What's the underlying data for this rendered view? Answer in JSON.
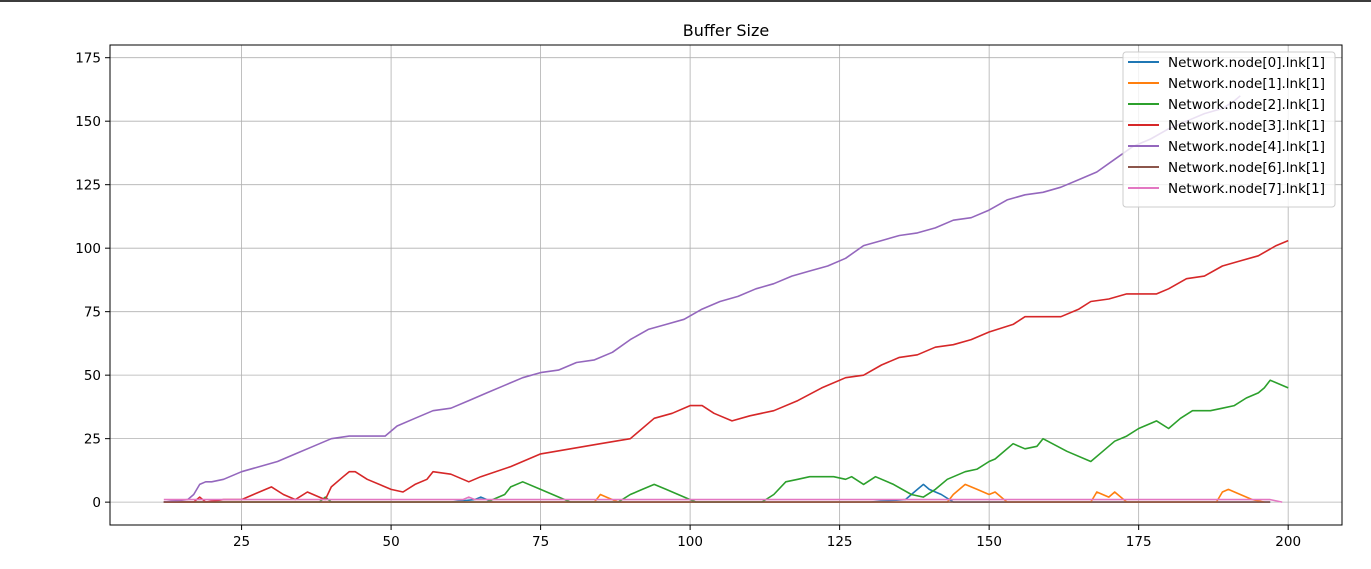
{
  "chart_data": {
    "type": "line",
    "title": "Buffer Size",
    "xlabel": "",
    "ylabel": "",
    "xlim": [
      3,
      209
    ],
    "ylim": [
      -9,
      180
    ],
    "xticks": [
      25,
      50,
      75,
      100,
      125,
      150,
      175,
      200
    ],
    "yticks": [
      0,
      25,
      50,
      75,
      100,
      125,
      150,
      175
    ],
    "grid": true,
    "legend_position": "top-right",
    "series": [
      {
        "name": "Network.node[0].lnk[1]",
        "color": "#1f77b4",
        "x": [
          12,
          20,
          30,
          40,
          50,
          60,
          64,
          65,
          66,
          67,
          70,
          80,
          90,
          100,
          110,
          120,
          130,
          136,
          138,
          139,
          140,
          142,
          144,
          150,
          160,
          170,
          180,
          190,
          197
        ],
        "y": [
          0,
          0,
          0,
          0,
          0,
          0,
          1,
          2,
          1,
          0,
          0,
          0,
          0,
          0,
          0,
          0,
          0,
          1,
          5,
          7,
          5,
          3,
          0,
          0,
          0,
          0,
          0,
          0,
          0
        ]
      },
      {
        "name": "Network.node[1].lnk[1]",
        "color": "#ff7f0e",
        "x": [
          12,
          30,
          50,
          70,
          84,
          85,
          86,
          88,
          100,
          120,
          140,
          143,
          144,
          146,
          148,
          150,
          151,
          153,
          160,
          167,
          168,
          170,
          171,
          173,
          180,
          188,
          189,
          190,
          192,
          194,
          196
        ],
        "y": [
          0,
          0,
          0,
          0,
          0,
          3,
          2,
          0,
          0,
          0,
          0,
          0,
          3,
          7,
          5,
          3,
          4,
          0,
          0,
          0,
          4,
          2,
          4,
          0,
          0,
          0,
          4,
          5,
          3,
          1,
          0
        ]
      },
      {
        "name": "Network.node[2].lnk[1]",
        "color": "#2ca02c",
        "x": [
          12,
          20,
          30,
          38,
          39,
          40,
          50,
          60,
          66,
          69,
          70,
          72,
          75,
          80,
          85,
          88,
          90,
          92,
          94,
          96,
          100,
          101,
          107,
          112,
          114,
          116,
          118,
          120,
          124,
          126,
          127,
          129,
          131,
          134,
          137,
          139,
          141,
          143,
          146,
          148,
          150,
          151,
          152,
          154,
          156,
          158,
          159,
          163,
          167,
          169,
          171,
          173,
          175,
          176,
          178,
          180,
          182,
          184,
          187,
          189,
          191,
          193,
          195,
          196,
          197,
          200
        ],
        "y": [
          0,
          0,
          0,
          0,
          2,
          0,
          0,
          0,
          0,
          3,
          6,
          8,
          5,
          0,
          0,
          0,
          3,
          5,
          7,
          5,
          1,
          0,
          0,
          0,
          3,
          8,
          9,
          10,
          10,
          9,
          10,
          7,
          10,
          7,
          3,
          2,
          5,
          9,
          12,
          13,
          16,
          17,
          19,
          23,
          21,
          22,
          25,
          20,
          16,
          20,
          24,
          26,
          29,
          30,
          32,
          29,
          33,
          36,
          36,
          37,
          38,
          41,
          43,
          45,
          48,
          45
        ]
      },
      {
        "name": "Network.node[3].lnk[1]",
        "color": "#d62728",
        "x": [
          12,
          17,
          18,
          19,
          22,
          25,
          27,
          30,
          32,
          34,
          36,
          38,
          39,
          40,
          42,
          43,
          44,
          46,
          50,
          52,
          54,
          56,
          57,
          60,
          63,
          65,
          70,
          75,
          80,
          85,
          90,
          94,
          97,
          100,
          102,
          104,
          107,
          110,
          114,
          118,
          122,
          126,
          129,
          132,
          135,
          138,
          141,
          144,
          147,
          150,
          154,
          156,
          159,
          162,
          165,
          167,
          170,
          173,
          175,
          178,
          180,
          183,
          186,
          189,
          192,
          195,
          198,
          200
        ],
        "y": [
          0,
          0,
          2,
          0,
          1,
          1,
          3,
          6,
          3,
          1,
          4,
          2,
          1,
          6,
          10,
          12,
          12,
          9,
          5,
          4,
          7,
          9,
          12,
          11,
          8,
          10,
          14,
          19,
          21,
          23,
          25,
          33,
          35,
          38,
          38,
          35,
          32,
          34,
          36,
          40,
          45,
          49,
          50,
          54,
          57,
          58,
          61,
          62,
          64,
          67,
          70,
          73,
          73,
          73,
          76,
          79,
          80,
          82,
          82,
          82,
          84,
          88,
          89,
          93,
          95,
          97,
          101,
          103
        ]
      },
      {
        "name": "Network.node[4].lnk[1]",
        "color": "#9467bd",
        "x": [
          12,
          16,
          17,
          18,
          19,
          20,
          22,
          25,
          28,
          31,
          34,
          37,
          40,
          43,
          46,
          49,
          51,
          54,
          57,
          60,
          63,
          66,
          69,
          72,
          75,
          78,
          81,
          84,
          87,
          90,
          93,
          96,
          99,
          102,
          105,
          108,
          111,
          114,
          117,
          120,
          123,
          126,
          129,
          132,
          135,
          138,
          141,
          144,
          147,
          150,
          153,
          156,
          159,
          162,
          165,
          168,
          171,
          174,
          177,
          180,
          183,
          186,
          189,
          191,
          192
        ],
        "y": [
          0,
          1,
          3,
          7,
          8,
          8,
          9,
          12,
          14,
          16,
          19,
          22,
          25,
          26,
          26,
          26,
          30,
          33,
          36,
          37,
          40,
          43,
          46,
          49,
          51,
          52,
          55,
          56,
          59,
          64,
          68,
          70,
          72,
          76,
          79,
          81,
          84,
          86,
          89,
          91,
          93,
          96,
          101,
          103,
          105,
          106,
          108,
          111,
          112,
          115,
          119,
          121,
          122,
          124,
          127,
          130,
          135,
          140,
          143,
          147,
          150,
          153,
          155,
          158,
          160
        ]
      },
      {
        "name": "Network.node[6].lnk[1]",
        "color": "#8c564b",
        "x": [
          12,
          50,
          100,
          150,
          197
        ],
        "y": [
          0,
          0,
          0,
          0,
          0
        ]
      },
      {
        "name": "Network.node[7].lnk[1]",
        "color": "#e377c2",
        "x": [
          12,
          20,
          30,
          40,
          50,
          60,
          62,
          63,
          64,
          70,
          80,
          90,
          100,
          110,
          120,
          130,
          140,
          150,
          160,
          170,
          180,
          190,
          197,
          199
        ],
        "y": [
          1,
          1,
          1,
          1,
          1,
          1,
          1,
          2,
          1,
          1,
          1,
          1,
          1,
          1,
          1,
          1,
          1,
          1,
          1,
          1,
          1,
          1,
          1,
          0
        ]
      }
    ]
  }
}
